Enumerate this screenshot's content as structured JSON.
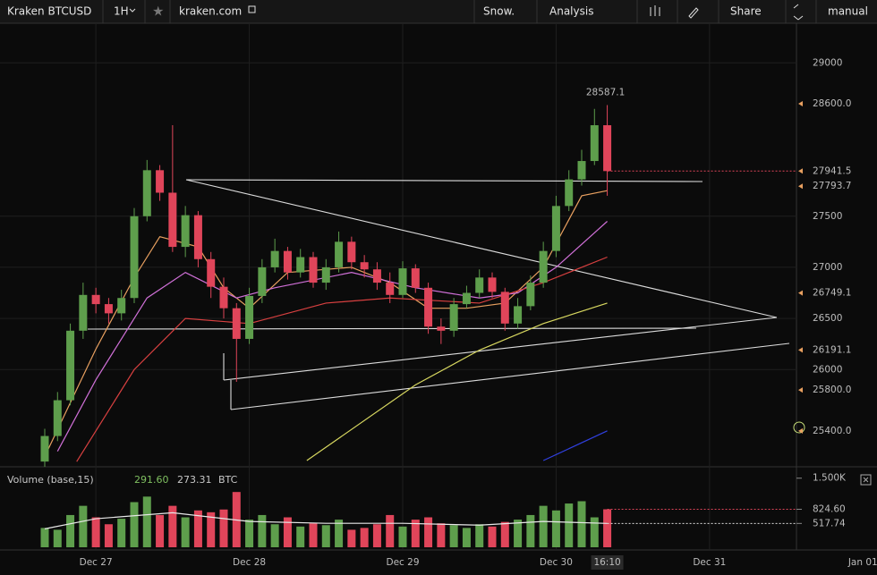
{
  "toolbar": {
    "symbol": "Kraken BTCUSD",
    "interval": "1H",
    "site": "kraken.com",
    "snow": "Snow.",
    "analysis": "Analysis",
    "share": "Share",
    "mode": "manual"
  },
  "chart_data": {
    "type": "candlestick",
    "x": [
      -8,
      -6,
      -4,
      -2,
      0,
      2,
      4,
      6,
      8,
      10,
      12,
      14,
      16,
      18,
      20,
      22,
      24,
      26,
      28,
      30,
      32,
      34,
      36,
      38,
      40,
      42,
      44,
      46,
      48,
      50,
      52,
      54,
      56,
      58,
      60,
      62,
      64,
      66,
      68,
      70,
      72,
      74,
      76,
      78,
      80
    ],
    "candles": [
      [
        25100,
        25420,
        25050,
        25350
      ],
      [
        25350,
        25780,
        25300,
        25700
      ],
      [
        25700,
        26450,
        25650,
        26380
      ],
      [
        26380,
        26850,
        26300,
        26730
      ],
      [
        26730,
        26800,
        26550,
        26640
      ],
      [
        26640,
        26700,
        26450,
        26550
      ],
      [
        26550,
        26780,
        26480,
        26700
      ],
      [
        26700,
        27580,
        26650,
        27500
      ],
      [
        27500,
        28050,
        27450,
        27950
      ],
      [
        27950,
        28000,
        27650,
        27730
      ],
      [
        27730,
        28390,
        27150,
        27200
      ],
      [
        27200,
        27600,
        27100,
        27510
      ],
      [
        27510,
        27550,
        27000,
        27080
      ],
      [
        27080,
        27150,
        26700,
        26810
      ],
      [
        26810,
        26900,
        26500,
        26600
      ],
      [
        26600,
        26650,
        25880,
        26300
      ],
      [
        26300,
        26800,
        26250,
        26720
      ],
      [
        26720,
        27080,
        26650,
        27000
      ],
      [
        27000,
        27280,
        26950,
        27160
      ],
      [
        27160,
        27200,
        26880,
        26950
      ],
      [
        26950,
        27180,
        26900,
        27100
      ],
      [
        27100,
        27150,
        26800,
        26850
      ],
      [
        26850,
        27080,
        26780,
        27000
      ],
      [
        27000,
        27350,
        26950,
        27250
      ],
      [
        27250,
        27300,
        26980,
        27050
      ],
      [
        27050,
        27120,
        26900,
        26980
      ],
      [
        26980,
        27050,
        26780,
        26850
      ],
      [
        26850,
        26950,
        26650,
        26730
      ],
      [
        26730,
        27060,
        26700,
        26990
      ],
      [
        26990,
        27030,
        26750,
        26800
      ],
      [
        26800,
        26850,
        26350,
        26420
      ],
      [
        26420,
        26500,
        26250,
        26380
      ],
      [
        26380,
        26700,
        26320,
        26640
      ],
      [
        26640,
        26820,
        26600,
        26750
      ],
      [
        26750,
        26980,
        26700,
        26900
      ],
      [
        26900,
        26950,
        26700,
        26760
      ],
      [
        26760,
        26800,
        26380,
        26450
      ],
      [
        26450,
        26700,
        26400,
        26620
      ],
      [
        26620,
        26920,
        26580,
        26850
      ],
      [
        26850,
        27250,
        26800,
        27160
      ],
      [
        27160,
        27700,
        27100,
        27600
      ],
      [
        27600,
        27950,
        27550,
        27860
      ],
      [
        27860,
        28150,
        27800,
        28040
      ],
      [
        28040,
        28550,
        28000,
        28390
      ],
      [
        28390,
        28587.1,
        27700,
        27941.5
      ]
    ],
    "up_color": "#5e9e4c",
    "down_color": "#e0455a",
    "volume": [
      420,
      380,
      700,
      900,
      650,
      500,
      620,
      980,
      1100,
      700,
      900,
      650,
      800,
      760,
      820,
      1200,
      600,
      700,
      500,
      650,
      450,
      520,
      480,
      600,
      380,
      420,
      500,
      700,
      450,
      600,
      650,
      520,
      480,
      420,
      500,
      450,
      550,
      600,
      700,
      900,
      800,
      950,
      1000,
      650,
      824.6
    ],
    "volume_ma": {
      "x": [
        -8,
        0,
        12,
        24,
        36,
        48,
        60,
        70,
        80
      ],
      "values": [
        400,
        620,
        750,
        560,
        520,
        520,
        480,
        560,
        517.74
      ],
      "color": "#e8e8e8"
    },
    "series": [
      {
        "color": "#e8a060",
        "x": [
          -8,
          0,
          6,
          10,
          16,
          20,
          24,
          30,
          40,
          46,
          52,
          58,
          64,
          70,
          76,
          80
        ],
        "values": [
          25150,
          26200,
          26900,
          27300,
          27200,
          26800,
          26600,
          26950,
          27000,
          26850,
          26600,
          26600,
          26650,
          27000,
          27700,
          27750
        ]
      },
      {
        "color": "#d070d8",
        "x": [
          -6,
          0,
          8,
          14,
          22,
          28,
          40,
          50,
          60,
          66,
          72,
          80
        ],
        "values": [
          25200,
          25900,
          26700,
          26950,
          26700,
          26800,
          26950,
          26800,
          26700,
          26750,
          27000,
          27450
        ]
      },
      {
        "color": "#d84040",
        "x": [
          -3,
          6,
          14,
          24,
          36,
          46,
          60,
          70,
          80
        ],
        "values": [
          25100,
          26000,
          26500,
          26450,
          26650,
          26700,
          26650,
          26850,
          27100
        ]
      },
      {
        "color": "#d8d860",
        "x": [
          33,
          50,
          60,
          70,
          80
        ],
        "values": [
          25110,
          25850,
          26190,
          26450,
          26650
        ]
      },
      {
        "color": "#3040e0",
        "x": [
          70,
          80
        ],
        "values": [
          25110,
          25400
        ]
      }
    ],
    "xlim": [
      -15,
      122.2
    ],
    "ylim": [
      25110,
      29370
    ],
    "vlim": [
      0,
      1650
    ],
    "xticks": [
      {
        "value": 0,
        "label": "Dec 27"
      },
      {
        "value": 24,
        "label": "Dec 28"
      },
      {
        "value": 48,
        "label": "Dec 29"
      },
      {
        "value": 72,
        "label": "Dec 30"
      },
      {
        "value": 96,
        "label": "Dec 31"
      },
      {
        "value": 120,
        "label": "Jan 01"
      }
    ],
    "last_time_label": "16:10",
    "yticks": [
      26000,
      26500,
      27000,
      27500,
      29000
    ],
    "price_markers": [
      {
        "value": 28600,
        "label": "28600.0"
      },
      {
        "value": 27941.5,
        "label": "27941.5"
      },
      {
        "value": 27793.7,
        "label": "27793.7"
      },
      {
        "value": 26749.1,
        "label": "26749.1"
      },
      {
        "value": 26191.1,
        "label": "26191.1"
      },
      {
        "value": 25800,
        "label": "25800.0"
      },
      {
        "value": 25400,
        "label": "25400.0"
      }
    ],
    "vticks": [
      {
        "value": 1500,
        "label": "1.500K"
      },
      {
        "value": 824.6,
        "label": "824.60"
      },
      {
        "value": 517.74,
        "label": "517.74"
      }
    ],
    "volume_legend": {
      "name": "Volume (base,15)",
      "up": "291.60",
      "down": "273.31",
      "unit": "BTC"
    },
    "grid": true
  }
}
